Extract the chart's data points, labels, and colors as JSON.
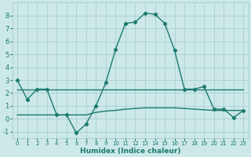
{
  "x": [
    0,
    1,
    2,
    3,
    4,
    5,
    6,
    7,
    8,
    9,
    10,
    11,
    12,
    13,
    14,
    15,
    16,
    17,
    18,
    19,
    20,
    21,
    22,
    23
  ],
  "line1": [
    3.0,
    1.5,
    2.3,
    2.3,
    0.3,
    0.3,
    -1.1,
    -0.4,
    1.0,
    2.8,
    5.4,
    7.4,
    7.5,
    8.2,
    8.1,
    7.4,
    5.3,
    2.3,
    2.3,
    2.5,
    0.75,
    0.75,
    0.1,
    0.65
  ],
  "line2": [
    2.25,
    2.25,
    2.25,
    2.25,
    2.25,
    2.25,
    2.25,
    2.25,
    2.25,
    2.25,
    2.25,
    2.25,
    2.25,
    2.25,
    2.25,
    2.25,
    2.25,
    2.25,
    2.25,
    2.25,
    2.25,
    2.25,
    2.25,
    2.25
  ],
  "line3": [
    0.3,
    0.3,
    0.3,
    0.3,
    0.3,
    0.3,
    0.3,
    0.3,
    0.5,
    0.6,
    0.65,
    0.75,
    0.8,
    0.85,
    0.85,
    0.85,
    0.85,
    0.8,
    0.75,
    0.7,
    0.65,
    0.65,
    0.65,
    0.65
  ],
  "line_color": "#1a7a6e",
  "bg_color": "#cce8e8",
  "grid_color": "#aacfcf",
  "xlabel": "Humidex (Indice chaleur)",
  "xlim": [
    -0.5,
    23.5
  ],
  "ylim": [
    -1.5,
    9.0
  ],
  "yticks": [
    -1,
    0,
    1,
    2,
    3,
    4,
    5,
    6,
    7,
    8
  ],
  "xticks": [
    0,
    1,
    2,
    3,
    4,
    5,
    6,
    7,
    8,
    9,
    10,
    11,
    12,
    13,
    14,
    15,
    16,
    17,
    18,
    19,
    20,
    21,
    22,
    23
  ],
  "marker": "D",
  "markersize": 2.2,
  "linewidth": 1.0
}
